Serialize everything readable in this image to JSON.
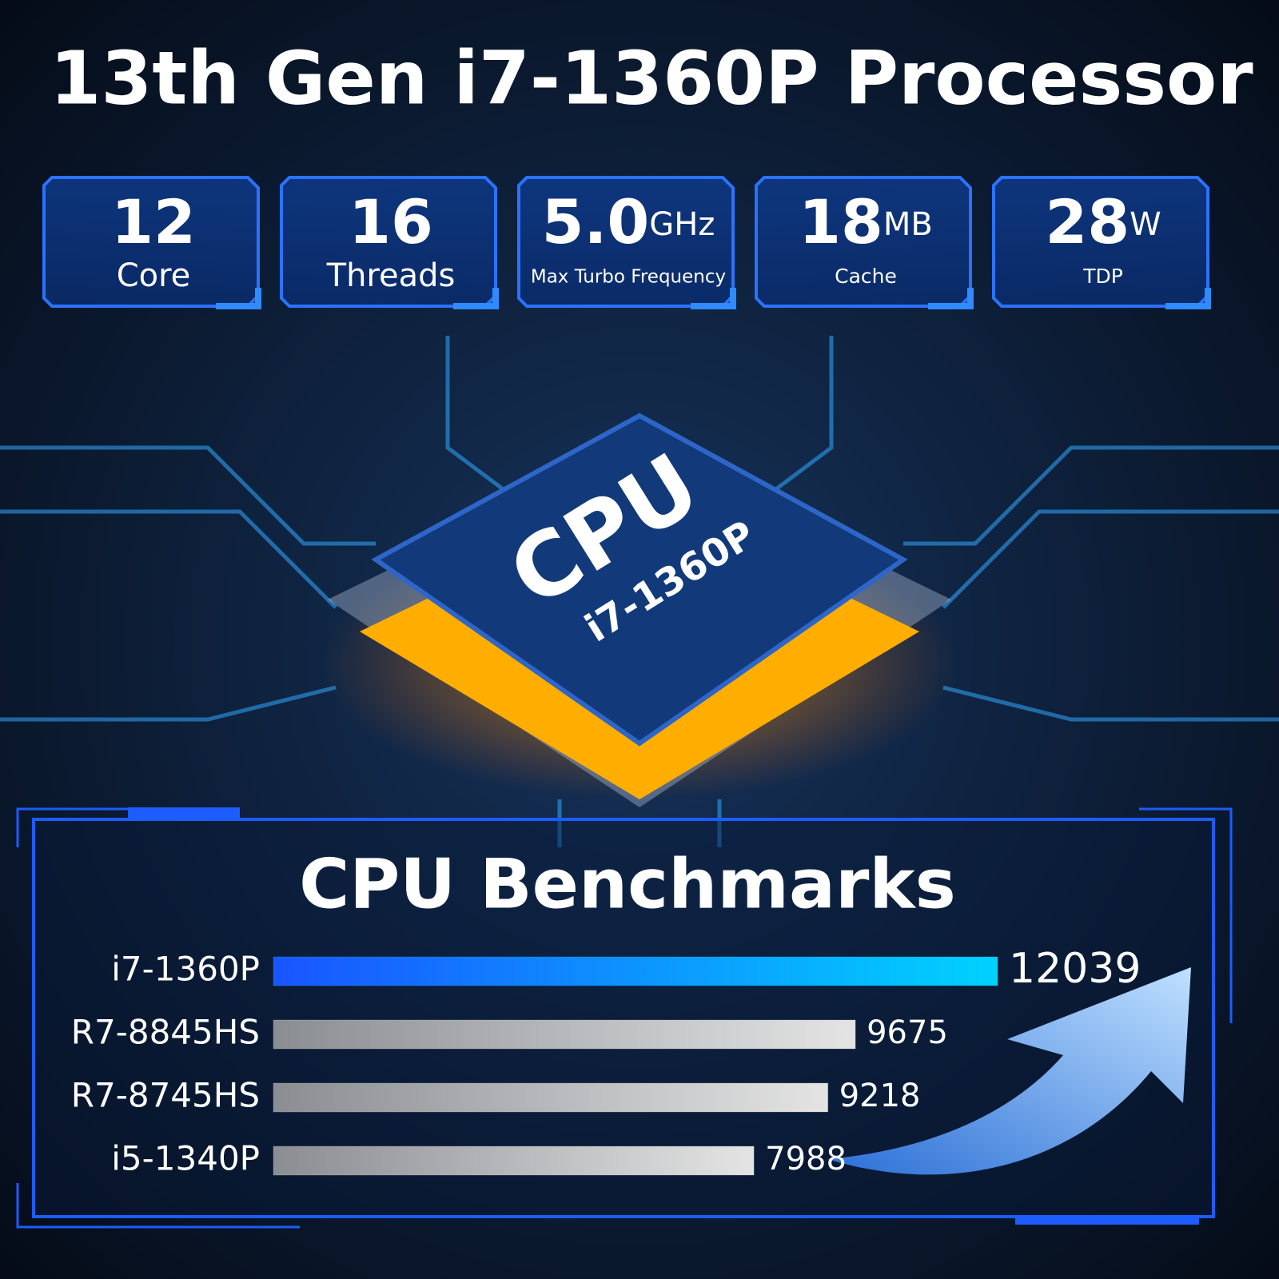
{
  "title": "13th Gen i7-1360P Processor",
  "specs": [
    {
      "value": "12",
      "label": "Core"
    },
    {
      "value": "16",
      "label": "Threads"
    },
    {
      "value": "5.0",
      "unit": "GHz",
      "label": "Max Turbo Frequency"
    },
    {
      "value": "18",
      "unit": "MB",
      "label": "Cache"
    },
    {
      "value": "28",
      "unit": "W",
      "label": "TDP"
    }
  ],
  "chip": {
    "label": "CPU",
    "model": "i7-1360P"
  },
  "chart_data": {
    "type": "bar",
    "orientation": "horizontal",
    "title": "CPU Benchmarks",
    "categories": [
      "i7-1360P",
      "R7-8845HS",
      "R7-8745HS",
      "i5-1340P"
    ],
    "values": [
      12039,
      9675,
      9218,
      7988
    ],
    "colors": [
      "#0aa8ff",
      "#b8b8b8",
      "#b8b8b8",
      "#b8b8b8"
    ]
  }
}
